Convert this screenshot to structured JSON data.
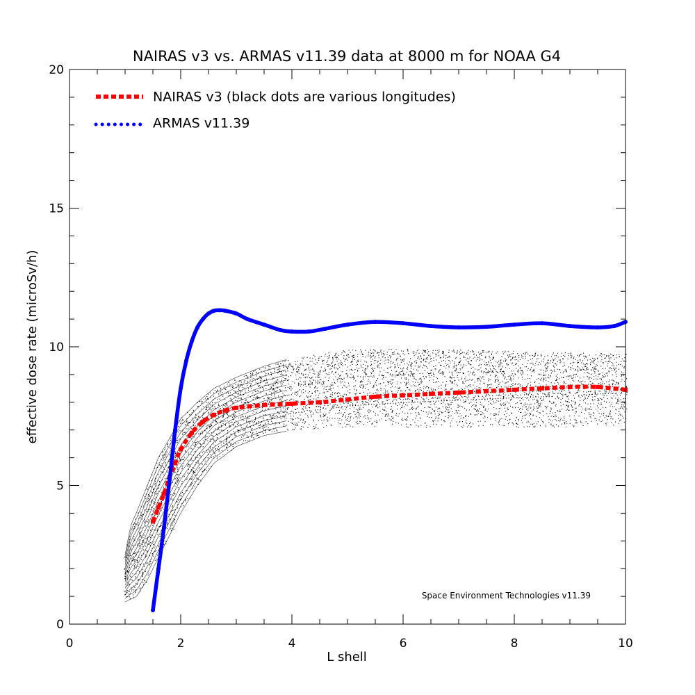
{
  "chart_data": {
    "type": "line",
    "title": "NAIRAS  v3 vs. ARMAS v11.39 data at 8000 m for NOAA G4",
    "xlabel": "L shell",
    "ylabel": "effective dose rate (microSv/h)",
    "xlim": [
      0,
      10
    ],
    "ylim": [
      0,
      20
    ],
    "xticks": [
      0,
      2,
      4,
      6,
      8,
      10
    ],
    "yticks": [
      0,
      5,
      10,
      15,
      20
    ],
    "xtick_labels": [
      "0",
      "2",
      "4",
      "6",
      "8",
      "10"
    ],
    "ytick_labels": [
      "0",
      "5",
      "10",
      "15",
      "20"
    ],
    "grid": false,
    "legend_position": "top-left",
    "footer_note": "Space Environment Technologies v11.39",
    "series": [
      {
        "name": "NAIRAS v3 (black dots are various longitudes)",
        "color": "#ff0000",
        "style": "dashed",
        "x": [
          1.5,
          1.6,
          1.7,
          1.8,
          1.9,
          2.0,
          2.2,
          2.4,
          2.6,
          2.8,
          3.0,
          3.5,
          4.0,
          4.5,
          5.0,
          5.5,
          6.0,
          6.5,
          7.0,
          7.5,
          8.0,
          8.5,
          9.0,
          9.5,
          10.0
        ],
        "y": [
          3.7,
          4.2,
          4.7,
          5.3,
          5.8,
          6.3,
          6.9,
          7.3,
          7.55,
          7.7,
          7.8,
          7.9,
          7.95,
          8.0,
          8.1,
          8.2,
          8.25,
          8.3,
          8.35,
          8.4,
          8.45,
          8.5,
          8.55,
          8.55,
          8.45
        ]
      },
      {
        "name": "ARMAS v11.39",
        "color": "#0000ff",
        "style": "dotted",
        "x": [
          1.5,
          1.6,
          1.7,
          1.8,
          1.9,
          2.0,
          2.1,
          2.2,
          2.3,
          2.4,
          2.5,
          2.6,
          2.7,
          2.8,
          3.0,
          3.2,
          3.5,
          3.8,
          4.0,
          4.3,
          4.6,
          5.0,
          5.5,
          6.0,
          6.5,
          7.0,
          7.5,
          8.0,
          8.5,
          9.0,
          9.5,
          9.8,
          10.0
        ],
        "y": [
          0.5,
          2.0,
          3.5,
          5.2,
          7.0,
          8.5,
          9.5,
          10.2,
          10.7,
          11.0,
          11.2,
          11.3,
          11.32,
          11.3,
          11.2,
          11.0,
          10.8,
          10.6,
          10.55,
          10.55,
          10.65,
          10.8,
          10.9,
          10.85,
          10.75,
          10.7,
          10.72,
          10.8,
          10.85,
          10.75,
          10.7,
          10.75,
          10.9
        ]
      }
    ],
    "scatter": {
      "name": "black dots are various longitudes",
      "color": "#000000",
      "upper_envelope": {
        "x": [
          1.0,
          1.1,
          1.2,
          1.4,
          1.6,
          1.8,
          2.0,
          2.3,
          2.6,
          3.0,
          3.5,
          4.0,
          5.0,
          6.0,
          7.0,
          8.0,
          9.0,
          10.0
        ],
        "y": [
          2.5,
          3.5,
          4.0,
          5.0,
          6.0,
          6.7,
          7.4,
          8.0,
          8.5,
          8.9,
          9.3,
          9.6,
          9.9,
          9.95,
          9.9,
          9.85,
          9.8,
          9.75
        ]
      },
      "lower_envelope": {
        "x": [
          1.0,
          1.1,
          1.2,
          1.4,
          1.6,
          1.8,
          2.0,
          2.3,
          2.6,
          3.0,
          3.5,
          4.0,
          5.0,
          6.0,
          7.0,
          8.0,
          9.0,
          10.0
        ],
        "y": [
          0.8,
          0.9,
          1.0,
          1.6,
          2.4,
          3.2,
          4.0,
          5.0,
          5.8,
          6.4,
          6.8,
          7.0,
          7.1,
          7.1,
          7.1,
          7.1,
          7.1,
          7.2
        ]
      }
    }
  }
}
